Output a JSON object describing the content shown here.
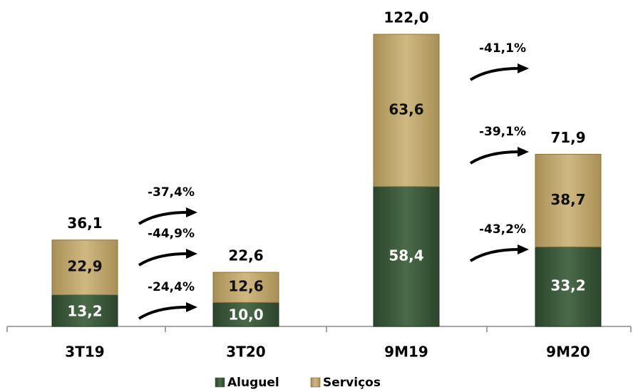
{
  "chart_data": {
    "type": "stacked_bar",
    "categories": [
      "3T19",
      "3T20",
      "9M19",
      "9M20"
    ],
    "series": [
      {
        "name": "Aluguel",
        "color": "#3d5c3d",
        "values": [
          13.2,
          10.0,
          58.4,
          33.2
        ],
        "value_labels": [
          "13,2",
          "10,0",
          "58,4",
          "33,2"
        ],
        "changes": [
          {
            "value": -24.4,
            "label": "-24,4%"
          },
          {
            "value": -43.2,
            "label": "-43,2%"
          }
        ]
      },
      {
        "name": "Serviços",
        "color": "#c3ab72",
        "values": [
          22.9,
          12.6,
          63.6,
          38.7
        ],
        "value_labels": [
          "22,9",
          "12,6",
          "63,6",
          "38,7"
        ],
        "changes": [
          {
            "value": -44.9,
            "label": "-44,9%"
          },
          {
            "value": -39.1,
            "label": "-39,1%"
          }
        ]
      }
    ],
    "totals": [
      36.1,
      22.6,
      122.0,
      71.9
    ],
    "total_labels": [
      "36,1",
      "22,6",
      "122,0",
      "71,9"
    ],
    "total_changes": [
      {
        "value": -37.4,
        "label": "-37,4%"
      },
      {
        "value": -41.1,
        "label": "-41,1%"
      }
    ]
  }
}
